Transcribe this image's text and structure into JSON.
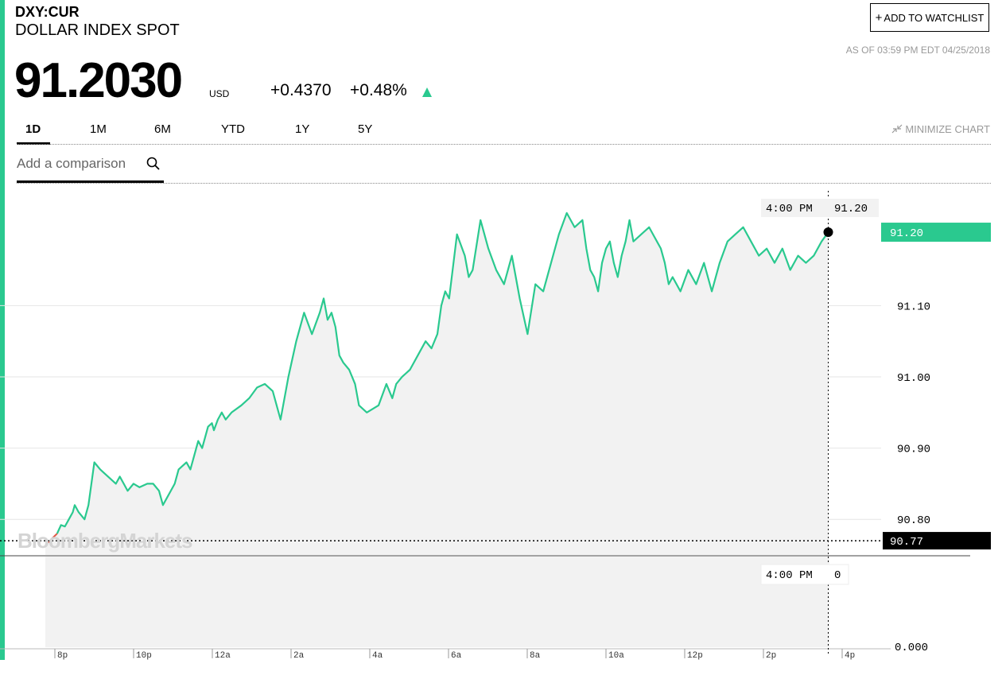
{
  "header": {
    "ticker": "DXY:CUR",
    "name": "DOLLAR INDEX SPOT",
    "price": "91.2030",
    "currency": "USD",
    "change": "+0.4370",
    "change_pct": "+0.48%",
    "watchlist_label": "ADD TO WATCHLIST",
    "as_of": "AS OF 03:59 PM EDT 04/25/2018"
  },
  "tabs": [
    {
      "label": "1D",
      "active": true
    },
    {
      "label": "1M",
      "active": false
    },
    {
      "label": "6M",
      "active": false
    },
    {
      "label": "YTD",
      "active": false
    },
    {
      "label": "1Y",
      "active": false
    },
    {
      "label": "5Y",
      "active": false
    }
  ],
  "minimize_label": "MINIMIZE CHART",
  "comparison": {
    "placeholder": "Add a comparison"
  },
  "watermark": "BloombergMarkets",
  "colors": {
    "up": "#2ac98f",
    "down": "#e05a47",
    "accent": "#2ac98f"
  },
  "icons": {
    "search": "search-icon",
    "minimize": "minimize-arrows-icon",
    "up": "up-arrow-icon"
  },
  "chart_data": {
    "type": "line",
    "x_ticks": [
      "8p",
      "10p",
      "12a",
      "2a",
      "4a",
      "6a",
      "8a",
      "10a",
      "12p",
      "2p",
      "4p"
    ],
    "y_ticks": [
      "91.10",
      "91.00",
      "90.90",
      "90.80"
    ],
    "ylim": [
      90.75,
      91.27
    ],
    "grid": true,
    "crosshair_time": "4:00 PM",
    "crosshair_value": "91.20",
    "current_label": "91.20",
    "previous_close": 90.77,
    "previous_close_label": "90.77",
    "volume_time": "4:00 PM",
    "volume_value": "0",
    "volume_axis_label": "0.000",
    "x": [
      0,
      0.06,
      0.1,
      0.15,
      0.3,
      0.4,
      0.5,
      0.6,
      0.7,
      0.75,
      0.85,
      1.0,
      1.1,
      1.2,
      1.25,
      1.4,
      1.6,
      1.8,
      1.9,
      2.0,
      2.1,
      2.25,
      2.4,
      2.6,
      2.75,
      2.9,
      3.0,
      3.1,
      3.2,
      3.3,
      3.4,
      3.5,
      3.6,
      3.7,
      3.75,
      3.8,
      3.85,
      3.9,
      4.0,
      4.1,
      4.15,
      4.25,
      4.3,
      4.4,
      4.5,
      4.6,
      4.75,
      5.0,
      5.2,
      5.4,
      5.6,
      5.8,
      6.0,
      6.2,
      6.4,
      6.6,
      6.8,
      7.0,
      7.1,
      7.2,
      7.3,
      7.4,
      7.5,
      7.6,
      7.75,
      7.9,
      8.0,
      8.2,
      8.5,
      8.7,
      8.85,
      8.95,
      9.1,
      9.3,
      9.5,
      9.7,
      9.85,
      10.0,
      10.1,
      10.2,
      10.3,
      10.5,
      10.7,
      10.8,
      10.9,
      11.1,
      11.3,
      11.5,
      11.7,
      11.9,
      12.1,
      12.3,
      12.5,
      12.7,
      12.9,
      13.1,
      13.3,
      13.5,
      13.7,
      13.8,
      13.9,
      14.0,
      14.1,
      14.2,
      14.3,
      14.4,
      14.5,
      14.6,
      14.7,
      14.8,
      14.9,
      15.0,
      15.2,
      15.4,
      15.5,
      15.6,
      15.7,
      15.8,
      15.9,
      16.0,
      16.2,
      16.4,
      16.6,
      16.8,
      17.0,
      17.2,
      17.4,
      17.6,
      17.8,
      18.0,
      18.2,
      18.4,
      18.6,
      18.8,
      19.0,
      19.2,
      19.4,
      19.6,
      19.8,
      19.97
    ],
    "values": [
      90.771,
      90.768,
      90.768,
      90.772,
      90.78,
      90.792,
      90.79,
      90.8,
      90.81,
      90.82,
      90.81,
      90.8,
      90.82,
      90.86,
      90.88,
      90.87,
      90.86,
      90.85,
      90.86,
      90.85,
      90.84,
      90.85,
      90.845,
      90.85,
      90.85,
      90.84,
      90.82,
      90.83,
      90.84,
      90.85,
      90.87,
      90.875,
      90.88,
      90.87,
      90.88,
      90.89,
      90.9,
      90.91,
      90.9,
      90.92,
      90.93,
      90.935,
      90.925,
      90.94,
      90.95,
      90.94,
      90.95,
      90.96,
      90.97,
      90.985,
      90.99,
      90.98,
      90.94,
      91.0,
      91.05,
      91.09,
      91.06,
      91.09,
      91.11,
      91.08,
      91.09,
      91.07,
      91.03,
      91.02,
      91.01,
      90.99,
      90.96,
      90.95,
      90.96,
      90.99,
      90.97,
      90.99,
      91.0,
      91.01,
      91.03,
      91.05,
      91.04,
      91.06,
      91.1,
      91.12,
      91.11,
      91.2,
      91.17,
      91.14,
      91.15,
      91.22,
      91.18,
      91.15,
      91.13,
      91.17,
      91.11,
      91.06,
      91.13,
      91.12,
      91.16,
      91.2,
      91.23,
      91.21,
      91.22,
      91.18,
      91.15,
      91.14,
      91.12,
      91.16,
      91.18,
      91.19,
      91.16,
      91.14,
      91.17,
      91.19,
      91.22,
      91.19,
      91.2,
      91.21,
      91.2,
      91.19,
      91.18,
      91.16,
      91.13,
      91.14,
      91.12,
      91.15,
      91.13,
      91.16,
      91.12,
      91.16,
      91.19,
      91.2,
      91.21,
      91.19,
      91.17,
      91.18,
      91.16,
      91.18,
      91.15,
      91.17,
      91.16,
      91.17,
      91.19,
      91.203
    ],
    "x_range": [
      0,
      20
    ]
  }
}
